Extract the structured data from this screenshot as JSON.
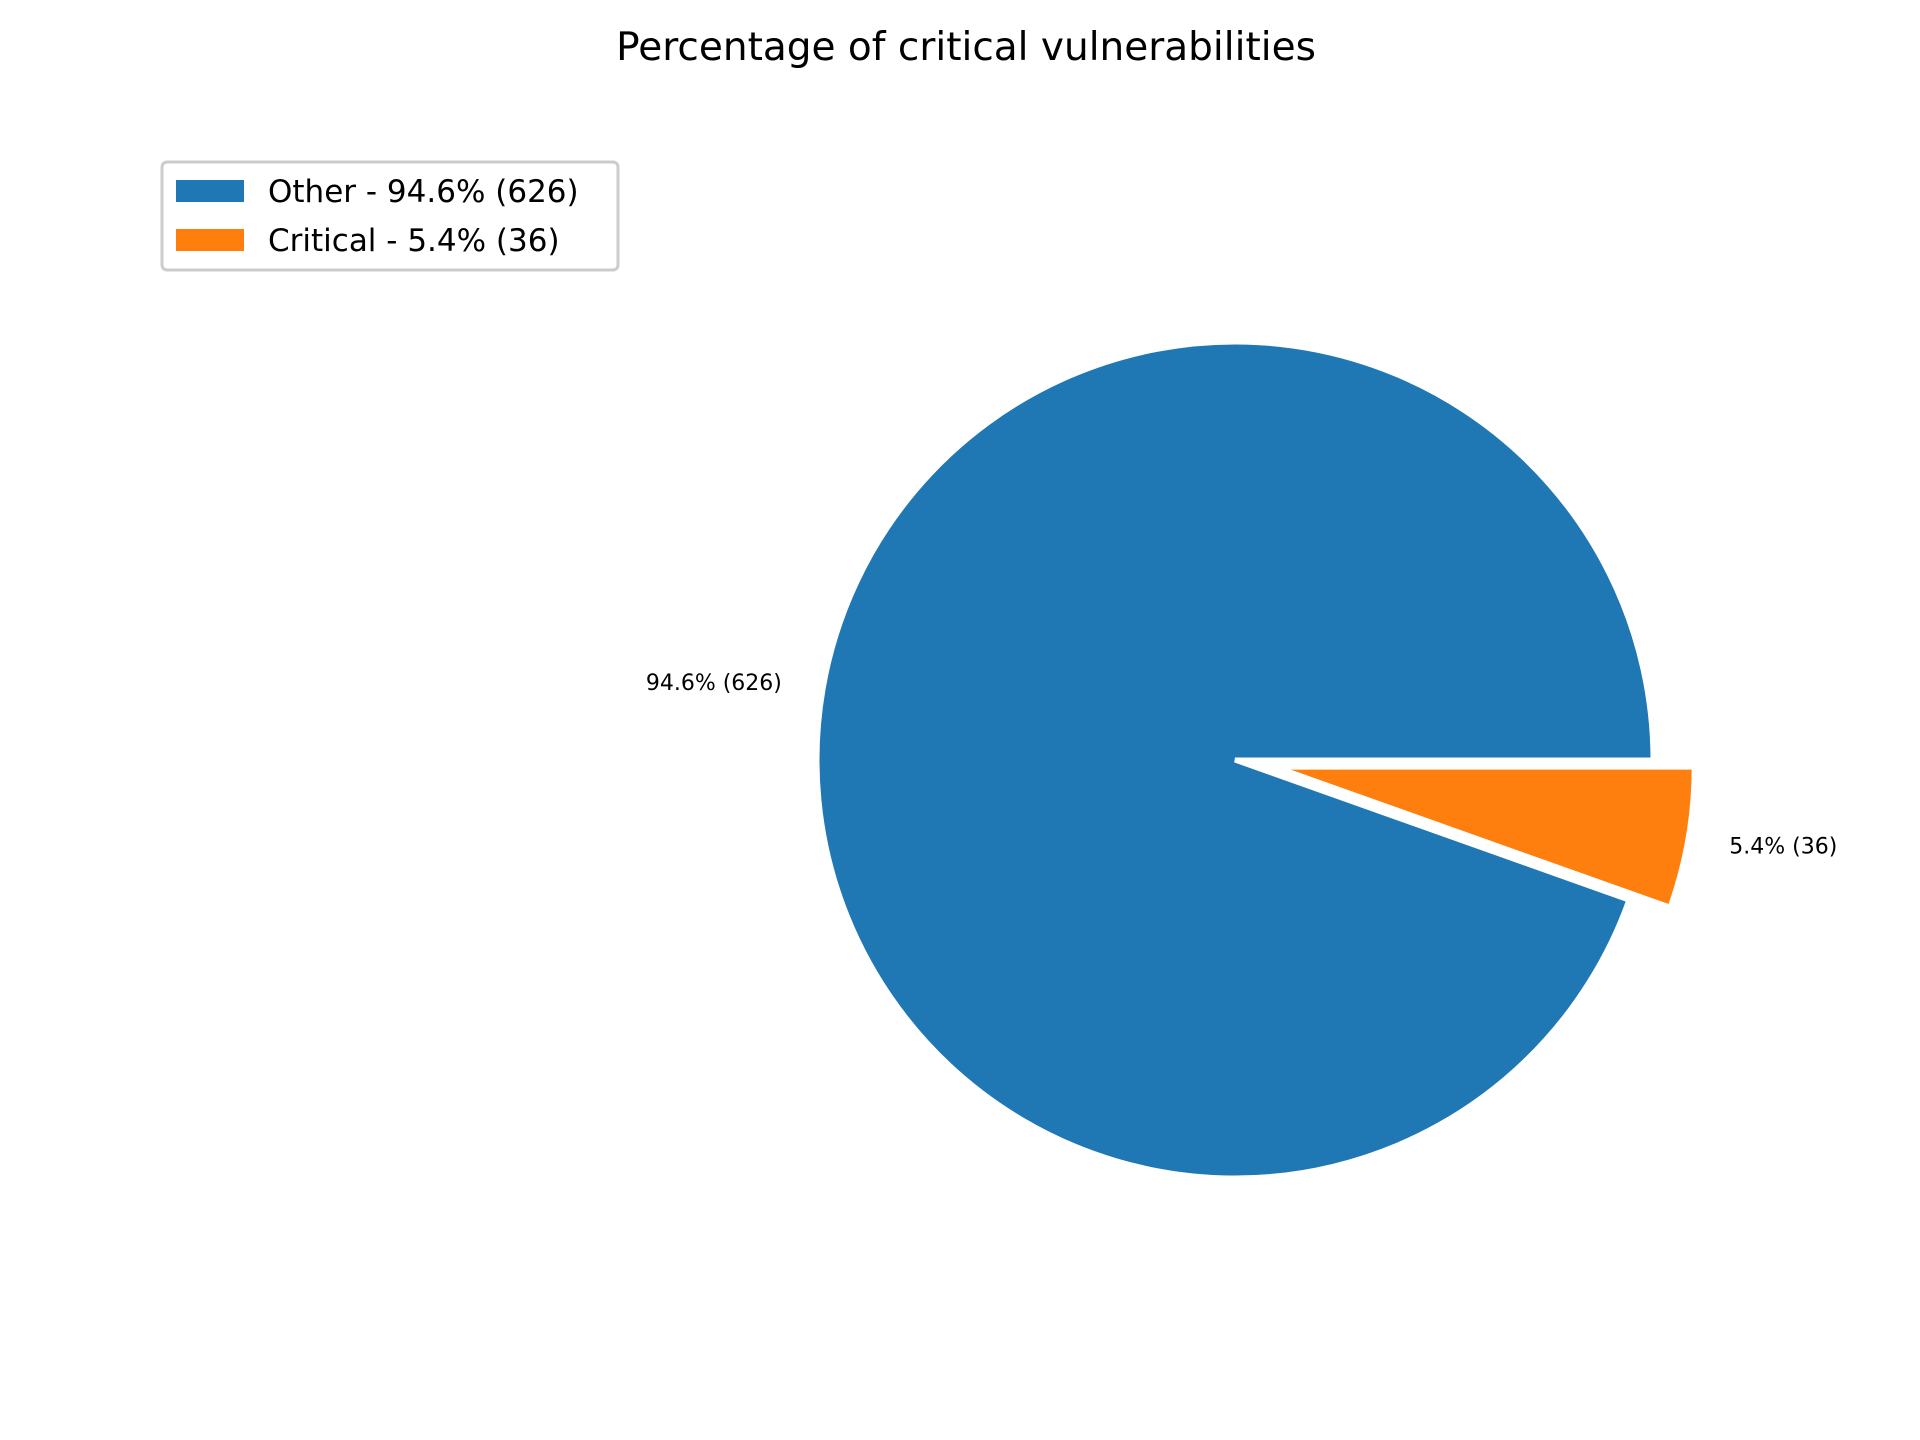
{
  "chart_data": {
    "type": "pie",
    "title": "Percentage of critical vulnerabilities",
    "legend_position": "top-left",
    "start_angle_deg": 0,
    "direction": "counterclockwise",
    "slices": [
      {
        "name": "Other",
        "value": 626,
        "percent": 94.6,
        "label": "94.6% (626)",
        "legend": "Other - 94.6% (626)",
        "color": "#1f77b4",
        "explode": 0
      },
      {
        "name": "Critical",
        "value": 36,
        "percent": 5.4,
        "label": "5.4% (36)",
        "legend": "Critical - 5.4% (36)",
        "color": "#ff7f0e",
        "explode": 0.1
      }
    ]
  }
}
